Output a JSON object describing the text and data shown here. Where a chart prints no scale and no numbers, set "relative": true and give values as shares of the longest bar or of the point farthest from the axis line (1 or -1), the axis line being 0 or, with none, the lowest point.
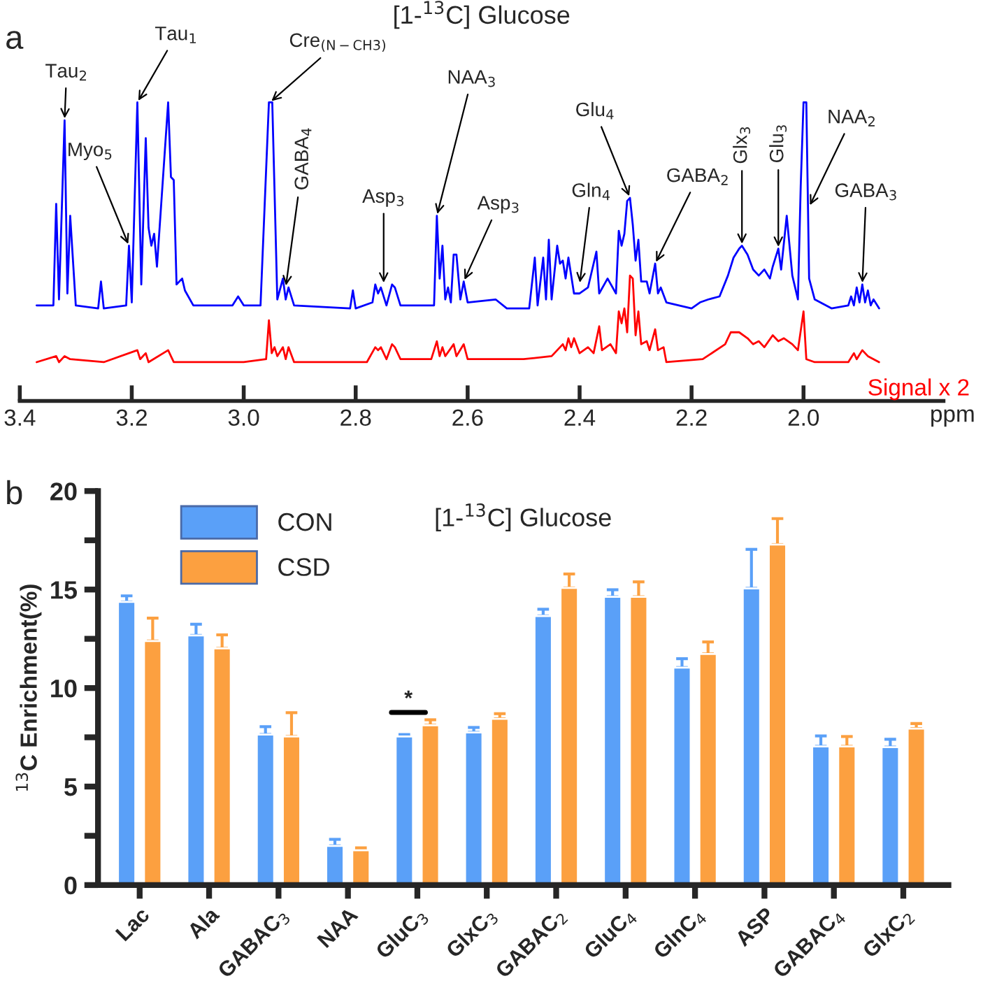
{
  "chart_data": [
    {
      "type": "line",
      "relative": true,
      "title": "[1-$^{13}$C] Glucose",
      "xlabel": "ppm",
      "tick_labels": "x",
      "xlim": [
        3.4,
        1.75
      ],
      "xticks": [
        {
          "value": 3.4,
          "label": "3.4"
        },
        {
          "value": 3.2,
          "label": "3.2"
        },
        {
          "value": 3.0,
          "label": "3.0"
        },
        {
          "value": 2.8,
          "label": "2.8"
        },
        {
          "value": 2.6,
          "label": "2.6"
        },
        {
          "value": 2.4,
          "label": "2.4"
        },
        {
          "value": 2.2,
          "label": "2.2"
        },
        {
          "value": 2.0,
          "label": "2.0"
        }
      ],
      "series": [
        {
          "color": "#0000ff",
          "x": [
            3.37,
            3.34,
            3.335,
            3.33,
            3.32,
            3.315,
            3.31,
            3.3,
            3.26,
            3.255,
            3.25,
            3.21,
            3.205,
            3.2,
            3.19,
            3.183,
            3.175,
            3.17,
            3.165,
            3.16,
            3.155,
            3.135,
            3.13,
            3.125,
            3.12,
            3.11,
            3.105,
            3.09,
            3.02,
            3.01,
            3.0,
            2.97,
            2.955,
            2.949,
            2.94,
            2.93,
            2.925,
            2.92,
            2.91,
            2.81,
            2.805,
            2.8,
            2.77,
            2.765,
            2.76,
            2.755,
            2.745,
            2.735,
            2.73,
            2.72,
            2.68,
            2.66,
            2.655,
            2.65,
            2.645,
            2.64,
            2.635,
            2.63,
            2.625,
            2.62,
            2.613,
            2.607,
            2.6,
            2.55,
            2.53,
            2.49,
            2.48,
            2.475,
            2.465,
            2.46,
            2.455,
            2.45,
            2.44,
            2.435,
            2.43,
            2.425,
            2.42,
            2.41,
            2.4,
            2.385,
            2.37,
            2.365,
            2.35,
            2.335,
            2.33,
            2.325,
            2.32,
            2.315,
            2.31,
            2.305,
            2.3,
            2.295,
            2.29,
            2.28,
            2.275,
            2.265,
            2.26,
            2.255,
            2.245,
            2.2,
            2.185,
            2.17,
            2.15,
            2.135,
            2.125,
            2.115,
            2.11,
            2.1,
            2.09,
            2.08,
            2.07,
            2.06,
            2.055,
            2.045,
            2.04,
            2.03,
            2.02,
            2.01,
            2.005,
            2.0,
            1.995,
            1.99,
            1.98,
            1.95,
            1.92,
            1.915,
            1.91,
            1.905,
            1.9,
            1.895,
            1.89,
            1.885,
            1.88,
            1.875,
            1.865
          ],
          "values": [
            0.32,
            0.32,
            0.66,
            0.34,
            0.94,
            0.36,
            0.62,
            0.32,
            0.31,
            0.4,
            0.31,
            0.32,
            0.52,
            0.33,
            1,
            0.39,
            0.88,
            0.58,
            0.52,
            0.56,
            0.45,
            1,
            0.75,
            0.74,
            0.39,
            0.41,
            0.37,
            0.32,
            0.32,
            0.35,
            0.32,
            0.32,
            1,
            1,
            0.34,
            0.41,
            0.34,
            0.38,
            0.32,
            0.31,
            0.37,
            0.31,
            0.33,
            0.39,
            0.36,
            0.38,
            0.32,
            0.39,
            0.38,
            0.32,
            0.32,
            0.32,
            0.62,
            0.41,
            0.52,
            0.34,
            0.38,
            0.33,
            0.49,
            0.49,
            0.34,
            0.4,
            0.33,
            0.34,
            0.31,
            0.31,
            0.48,
            0.32,
            0.48,
            0.34,
            0.54,
            0.34,
            0.52,
            0.46,
            0.47,
            0.41,
            0.48,
            0.36,
            0.36,
            0.38,
            0.5,
            0.36,
            0.41,
            0.36,
            0.57,
            0.52,
            0.56,
            0.67,
            0.68,
            0.59,
            0.47,
            0.54,
            0.4,
            0.4,
            0.36,
            0.46,
            0.36,
            0.38,
            0.33,
            0.31,
            0.33,
            0.34,
            0.35,
            0.42,
            0.48,
            0.51,
            0.52,
            0.49,
            0.44,
            0.42,
            0.44,
            0.41,
            0.45,
            0.51,
            0.44,
            0.62,
            0.42,
            0.34,
            0.72,
            1,
            1,
            0.41,
            0.34,
            0.31,
            0.32,
            0.35,
            0.32,
            0.38,
            0.33,
            0.39,
            0.33,
            0.37,
            0.32,
            0.34,
            0.31
          ]
        },
        {
          "name": "Signal x 2",
          "color": "#ff0000",
          "x": [
            3.37,
            3.335,
            3.33,
            3.32,
            3.31,
            3.25,
            3.19,
            3.185,
            3.175,
            3.17,
            3.135,
            3.125,
            3.0,
            2.96,
            2.955,
            2.95,
            2.945,
            2.94,
            2.93,
            2.925,
            2.92,
            2.91,
            2.78,
            2.765,
            2.76,
            2.755,
            2.745,
            2.735,
            2.73,
            2.72,
            2.665,
            2.655,
            2.65,
            2.645,
            2.64,
            2.625,
            2.62,
            2.607,
            2.6,
            2.5,
            2.45,
            2.43,
            2.425,
            2.42,
            2.415,
            2.41,
            2.4,
            2.385,
            2.375,
            2.365,
            2.36,
            2.345,
            2.335,
            2.33,
            2.325,
            2.32,
            2.315,
            2.31,
            2.305,
            2.3,
            2.295,
            2.29,
            2.28,
            2.275,
            2.265,
            2.26,
            2.25,
            2.245,
            2.18,
            2.14,
            2.13,
            2.115,
            2.1,
            2.09,
            2.08,
            2.07,
            2.055,
            2.045,
            2.035,
            2.02,
            2.01,
            2.0,
            1.995,
            1.98,
            1.92,
            1.91,
            1.905,
            1.895,
            1.885,
            1.875,
            1.865
          ],
          "values": [
            0.13,
            0.15,
            0.13,
            0.15,
            0.14,
            0.13,
            0.17,
            0.14,
            0.16,
            0.13,
            0.17,
            0.13,
            0.13,
            0.14,
            0.27,
            0.16,
            0.18,
            0.15,
            0.18,
            0.14,
            0.18,
            0.13,
            0.13,
            0.18,
            0.17,
            0.18,
            0.14,
            0.19,
            0.18,
            0.14,
            0.14,
            0.2,
            0.15,
            0.18,
            0.15,
            0.19,
            0.15,
            0.19,
            0.14,
            0.14,
            0.15,
            0.19,
            0.17,
            0.21,
            0.18,
            0.21,
            0.16,
            0.18,
            0.16,
            0.25,
            0.17,
            0.19,
            0.16,
            0.3,
            0.26,
            0.31,
            0.23,
            0.42,
            0.41,
            0.22,
            0.3,
            0.19,
            0.2,
            0.17,
            0.24,
            0.17,
            0.18,
            0.13,
            0.14,
            0.19,
            0.23,
            0.23,
            0.21,
            0.19,
            0.2,
            0.18,
            0.22,
            0.2,
            0.21,
            0.19,
            0.17,
            0.3,
            0.14,
            0.13,
            0.13,
            0.16,
            0.14,
            0.17,
            0.15,
            0.14,
            0.13
          ]
        }
      ],
      "annotations": [
        "a",
        {
          "text": "Tau$_{2}$",
          "x": 3.32,
          "y": 0.94
        },
        {
          "text": "Tau$_{1}$",
          "x": 3.19,
          "y": 1
        },
        {
          "text": "Myo$_{5}$",
          "x": 3.205,
          "y": 0.52
        },
        {
          "text": "Cre$_{(N−CH3)}$",
          "x": 2.953,
          "y": 1
        },
        {
          "text": "GABA$_{4}$",
          "x": 2.925,
          "y": 0.38
        },
        {
          "text": "Asp$_{3}$",
          "x": 2.75,
          "y": 0.39
        },
        {
          "text": "Asp$_{3}$",
          "x": 2.607,
          "y": 0.4
        },
        {
          "text": "NAA$_{3}$",
          "x": 2.655,
          "y": 0.62
        },
        {
          "text": "Gln$_{4}$",
          "x": 2.4,
          "y": 0.39
        },
        {
          "text": "Glu$_{4}$",
          "x": 2.31,
          "y": 0.68
        },
        {
          "text": "GABA$_{2}$",
          "x": 2.265,
          "y": 0.46
        },
        {
          "text": "Glx$_{3}$",
          "x": 2.11,
          "y": 0.52
        },
        {
          "text": "Glu$_{3}$",
          "x": 2.045,
          "y": 0.51
        },
        {
          "text": "NAA$_{2}$",
          "x": 1.99,
          "y": 0.65
        },
        {
          "text": "GABA$_{3}$",
          "x": 1.895,
          "y": 0.39
        }
      ]
    },
    {
      "type": "bar",
      "title": "[1-$^{13}$C] Glucose",
      "ylabel": "$^{13}$C Enrichment(%)",
      "legend": "top left",
      "categories": [
        "Lac",
        "Ala",
        "GABAC$_{3}$",
        "NAA",
        "GluC$_{3}$",
        "GlxC$_{3}$",
        "GABAC$_{2}$",
        "GluC$_{4}$",
        "GlnC$_{4}$",
        "ASP",
        "GABAC$_{4}$",
        "GlxC$_{2}$"
      ],
      "ylim": [
        0,
        20
      ],
      "yticks": [
        0,
        {
          "value": 2.5,
          "label": null
        },
        5,
        {
          "value": 7.5,
          "label": null
        },
        10,
        {
          "value": 12.5,
          "label": null
        },
        15,
        {
          "value": 17.5,
          "label": null
        },
        20
      ],
      "series": [
        {
          "name": "CON",
          "color": "#5aa0f8",
          "values": [
            14.37,
            12.67,
            7.64,
            1.99,
            7.54,
            7.75,
            13.66,
            14.63,
            11.04,
            15.06,
            7.04,
            7.0
          ],
          "errors": [
            [
              14.37,
              14.68
            ],
            [
              12.67,
              13.24
            ],
            [
              7.64,
              8.04
            ],
            [
              1.99,
              2.32
            ],
            [
              7.54,
              7.64
            ],
            [
              7.75,
              8.0
            ],
            [
              13.66,
              14.0
            ],
            [
              14.63,
              14.99
            ],
            [
              11.04,
              11.49
            ],
            [
              15.06,
              17.04
            ],
            [
              7.04,
              7.57
            ],
            [
              7.0,
              7.4
            ]
          ]
        },
        {
          "name": "CSD",
          "color": "#fca040",
          "values": [
            12.39,
            12.01,
            7.54,
            1.77,
            8.11,
            8.44,
            15.08,
            14.63,
            11.73,
            17.28,
            7.04,
            7.94
          ],
          "errors": [
            [
              12.39,
              13.55
            ],
            [
              12.01,
              12.7
            ],
            [
              7.54,
              8.75
            ],
            [
              1.77,
              1.89
            ],
            [
              8.11,
              8.39
            ],
            [
              8.44,
              8.7
            ],
            [
              15.08,
              15.79
            ],
            [
              14.63,
              15.39
            ],
            [
              11.73,
              12.34
            ],
            [
              17.28,
              18.6
            ],
            [
              7.04,
              7.54
            ],
            [
              7.94,
              8.2
            ]
          ]
        }
      ],
      "annotations": [
        "b",
        "*"
      ]
    }
  ]
}
